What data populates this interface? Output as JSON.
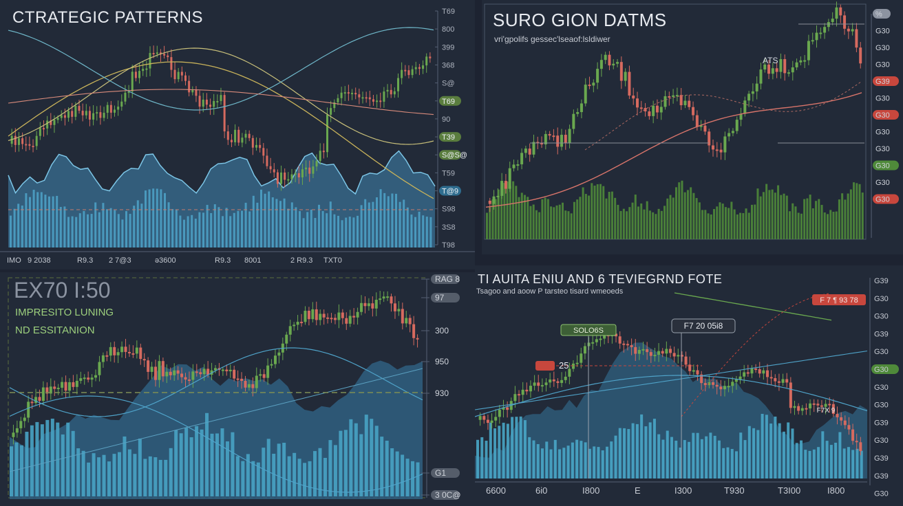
{
  "panel1": {
    "title": "CTRATEGIC PATTERNS",
    "y_ticks": [
      "T69",
      "800",
      "399",
      "368",
      "S@",
      "T69",
      "90",
      "T39",
      "S@S@",
      "T59",
      "T@9",
      "S98",
      "3S8",
      "T98"
    ],
    "x_ticks": [
      "IMO",
      "9 2038",
      "R9.3",
      "2 7@3",
      "ə3600",
      "R9.3",
      "8001",
      "2 R9.3",
      "TXT0"
    ]
  },
  "panel2": {
    "title": "SURO GION DATMS",
    "subtitle": "vri'gpolifs gessec'lseaof:lsldiwer",
    "annotation": "ATS",
    "y_ticks": [
      "%",
      "G30",
      "G30",
      "G30",
      "G39",
      "G30",
      "G30",
      "G30",
      "G30",
      "G30",
      "G30",
      "G30"
    ]
  },
  "panel3": {
    "big": "EX70 I:50",
    "line1": "IMPRESITO LUNING",
    "line2": "ND ESSITANION",
    "y_ticks": [
      "RAG 8",
      "97",
      "300",
      "950",
      "930",
      "G1",
      "3 0C@"
    ]
  },
  "panel4": {
    "title": "TI AUITA ENIU AND 6 TEVIEGRND FOTE",
    "subtitle": "Tsagoo and aoow P tarsteo tisard wmeoeds",
    "labels": {
      "a": "SOLO6S",
      "b": "25",
      "c": "F7 20 05i8",
      "d": "F 7 ¶ 93 78",
      "e": "F7X 9"
    },
    "y_ticks": [
      "G39",
      "G30",
      "G30",
      "G39",
      "G30",
      "G30",
      "G30",
      "G30",
      "G39",
      "G30",
      "G39",
      "G39",
      "G30"
    ],
    "x_ticks": [
      "6600",
      "6i0",
      "I800",
      "E",
      "I300",
      "T930",
      "T3I00",
      "I800"
    ]
  },
  "colors": {
    "up": "#6aa84f",
    "down": "#d66a5f",
    "blue": "#4fa3c9",
    "yellow": "#c9b35a",
    "bg": "#222a38",
    "grid": "#556074"
  }
}
